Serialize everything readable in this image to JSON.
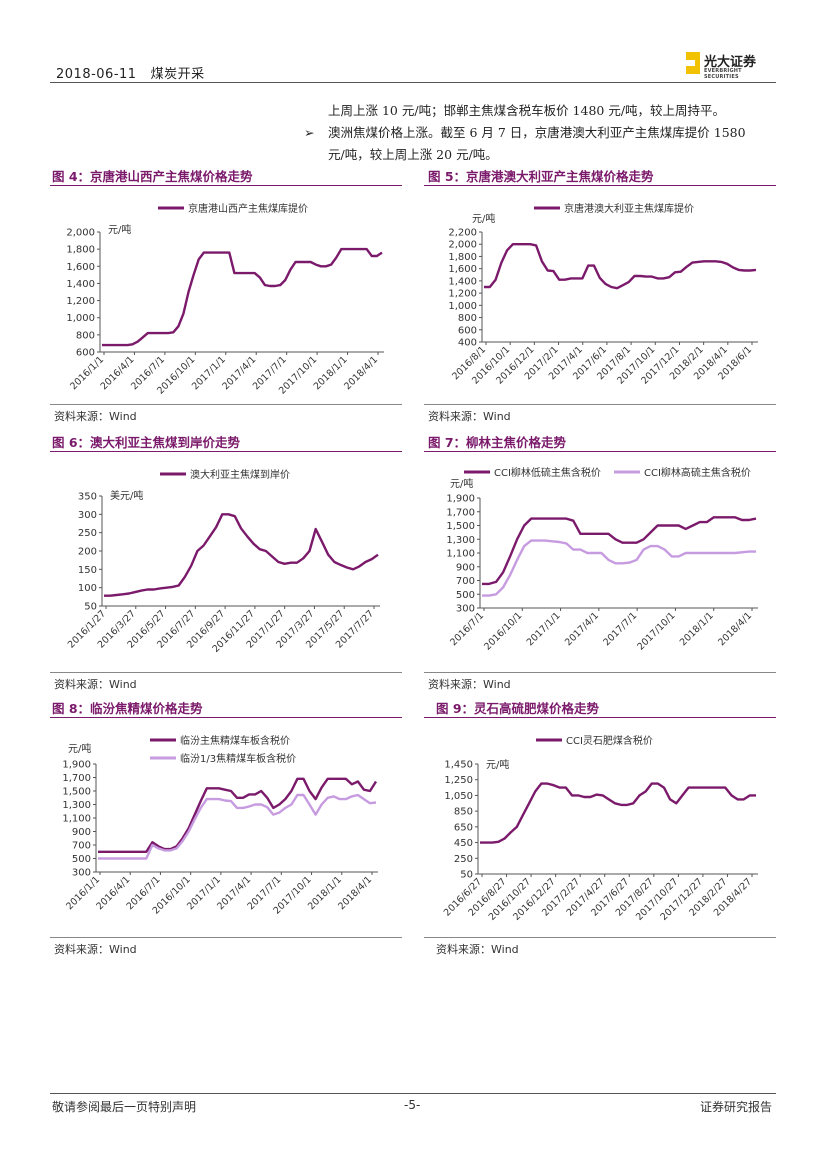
{
  "header": {
    "date": "2018-06-11",
    "section": "煤炭开采",
    "logo_name": "光大证券",
    "logo_sub": "EVERBRIGHT SECURITIES"
  },
  "body": {
    "line1": "上周上涨 10 元/吨；邯郸主焦煤含税车板价 1480 元/吨，较上周持平。",
    "bullet_mark": "➢",
    "line2": "澳洲焦煤价格上涨。截至 6 月 7 日，京唐港澳大利亚产主焦煤库提价 1580",
    "line3": "元/吨，较上周上涨 20 元/吨。"
  },
  "figures": [
    {
      "title": "图 4：京唐港山西产主焦煤价格走势",
      "source": "资料来源：Wind"
    },
    {
      "title": "图 5：京唐港澳大利亚产主焦煤价格走势",
      "source": "资料来源：Wind"
    },
    {
      "title": "图 6：澳大利亚主焦煤到岸价走势",
      "source": "资料来源：Wind"
    },
    {
      "title": "图 7：柳林主焦价格走势",
      "source": "资料来源：Wind"
    },
    {
      "title": "图 8：临汾焦精煤价格走势",
      "source": "资料来源：Wind"
    },
    {
      "title": "图 9：灵石高硫肥煤价格走势",
      "source": "资料来源：Wind"
    }
  ],
  "footer": {
    "left": "敬请参阅最后一页特别声明",
    "center": "-5-",
    "right": "证券研究报告"
  },
  "colors": {
    "dark": "#7b1a6b",
    "light": "#c79be0",
    "accent": "#7b1a6b"
  },
  "chart_data": [
    {
      "type": "line",
      "title": "图 4：京唐港山西产主焦煤价格走势",
      "unit": "元/吨",
      "ylim": [
        600,
        2000
      ],
      "yticks": [
        "2,000",
        "1,800",
        "1,600",
        "1,400",
        "1,200",
        "1,000",
        "800",
        "600"
      ],
      "xticks": [
        "2016/1/1",
        "2016/4/1",
        "2016/7/1",
        "2016/10/1",
        "2017/1/1",
        "2017/4/1",
        "2017/7/1",
        "2017/10/1",
        "2018/1/1",
        "2018/4/1"
      ],
      "series": [
        {
          "name": "京唐港山西产主焦煤库提价",
          "color": "dark",
          "values": [
            680,
            680,
            680,
            680,
            680,
            680,
            690,
            720,
            770,
            820,
            820,
            820,
            820,
            820,
            830,
            900,
            1050,
            1300,
            1500,
            1680,
            1760,
            1760,
            1760,
            1760,
            1760,
            1760,
            1520,
            1520,
            1520,
            1520,
            1520,
            1470,
            1380,
            1370,
            1370,
            1380,
            1440,
            1560,
            1650,
            1650,
            1650,
            1650,
            1620,
            1600,
            1600,
            1620,
            1700,
            1800,
            1800,
            1800,
            1800,
            1800,
            1800,
            1720,
            1720,
            1760
          ]
        }
      ]
    },
    {
      "type": "line",
      "title": "图 5：京唐港澳大利亚产主焦煤价格走势",
      "unit": "元/吨",
      "ylim": [
        400,
        2200
      ],
      "yticks": [
        "2,200",
        "2,000",
        "1,800",
        "1,600",
        "1,400",
        "1,200",
        "1,000",
        "800",
        "600",
        "400"
      ],
      "xticks": [
        "2016/8/1",
        "2016/10/1",
        "2016/12/1",
        "2017/2/1",
        "2017/4/1",
        "2017/6/1",
        "2017/8/1",
        "2017/10/1",
        "2017/12/1",
        "2018/2/1",
        "2018/4/1",
        "2018/6/1"
      ],
      "series": [
        {
          "name": "京唐港澳大利亚主焦煤库提价",
          "color": "dark",
          "values": [
            1300,
            1300,
            1420,
            1700,
            1900,
            2000,
            2000,
            2000,
            2000,
            1980,
            1720,
            1570,
            1560,
            1420,
            1420,
            1440,
            1440,
            1440,
            1650,
            1650,
            1450,
            1350,
            1300,
            1280,
            1330,
            1380,
            1480,
            1480,
            1470,
            1470,
            1440,
            1440,
            1460,
            1540,
            1550,
            1630,
            1700,
            1710,
            1720,
            1720,
            1720,
            1710,
            1680,
            1620,
            1580,
            1570,
            1570,
            1580
          ]
        }
      ]
    },
    {
      "type": "line",
      "title": "图 6：澳大利亚主焦煤到岸价走势",
      "unit": "美元/吨",
      "ylim": [
        50,
        350
      ],
      "yticks": [
        "350",
        "300",
        "250",
        "200",
        "150",
        "100",
        "50"
      ],
      "xticks": [
        "2016/1/27",
        "2016/3/27",
        "2016/5/27",
        "2016/7/27",
        "2016/9/27",
        "2016/11/27",
        "2017/1/27",
        "2017/3/27",
        "2017/5/27",
        "2017/7/27"
      ],
      "series": [
        {
          "name": "澳大利亚主焦煤到岸价",
          "color": "dark",
          "values": [
            78,
            78,
            80,
            82,
            84,
            88,
            92,
            95,
            95,
            98,
            100,
            102,
            106,
            130,
            160,
            200,
            215,
            240,
            265,
            300,
            300,
            295,
            262,
            240,
            220,
            205,
            200,
            185,
            170,
            165,
            168,
            168,
            180,
            200,
            260,
            225,
            190,
            170,
            162,
            155,
            150,
            158,
            170,
            178,
            190
          ]
        }
      ]
    },
    {
      "type": "line",
      "title": "图 7：柳林主焦价格走势",
      "unit": "元/吨",
      "ylim": [
        300,
        1900
      ],
      "yticks": [
        "1,900",
        "1,700",
        "1,500",
        "1,300",
        "1,100",
        "900",
        "700",
        "500",
        "300"
      ],
      "xticks": [
        "2016/7/1",
        "2016/10/1",
        "2017/1/1",
        "2017/4/1",
        "2017/7/1",
        "2017/10/1",
        "2018/1/1",
        "2018/4/1"
      ],
      "series": [
        {
          "name": "CCI柳林低硫主焦含税价",
          "color": "dark",
          "values": [
            650,
            650,
            680,
            820,
            1050,
            1300,
            1500,
            1600,
            1600,
            1600,
            1600,
            1600,
            1600,
            1570,
            1380,
            1380,
            1380,
            1380,
            1380,
            1300,
            1250,
            1250,
            1250,
            1300,
            1400,
            1500,
            1500,
            1500,
            1500,
            1450,
            1500,
            1550,
            1550,
            1620,
            1620,
            1620,
            1620,
            1580,
            1580,
            1600
          ]
        },
        {
          "name": "CCI柳林高硫主焦含税价",
          "color": "light",
          "values": [
            480,
            480,
            500,
            600,
            780,
            1000,
            1200,
            1280,
            1280,
            1280,
            1270,
            1260,
            1240,
            1150,
            1150,
            1100,
            1100,
            1100,
            1000,
            950,
            950,
            960,
            1000,
            1150,
            1200,
            1200,
            1150,
            1050,
            1050,
            1100,
            1100,
            1100,
            1100,
            1100,
            1100,
            1100,
            1100,
            1110,
            1120,
            1120
          ]
        }
      ]
    },
    {
      "type": "line",
      "title": "图 8：临汾焦精煤价格走势",
      "unit": "元/吨",
      "ylim": [
        300,
        1900
      ],
      "yticks": [
        "1,900",
        "1,700",
        "1,500",
        "1,300",
        "1,100",
        "900",
        "700",
        "500",
        "300"
      ],
      "xticks": [
        "2016/1/1",
        "2016/4/1",
        "2016/7/1",
        "2016/10/1",
        "2017/1/1",
        "2017/4/1",
        "2017/7/1",
        "2017/10/1",
        "2018/1/1",
        "2018/4/1"
      ],
      "series": [
        {
          "name": "临汾主焦精煤车板含税价",
          "color": "dark",
          "values": [
            600,
            600,
            600,
            600,
            600,
            600,
            600,
            600,
            600,
            740,
            680,
            640,
            640,
            680,
            800,
            950,
            1150,
            1350,
            1540,
            1540,
            1540,
            1520,
            1500,
            1400,
            1400,
            1450,
            1450,
            1500,
            1400,
            1250,
            1300,
            1380,
            1500,
            1680,
            1680,
            1500,
            1380,
            1550,
            1680,
            1680,
            1680,
            1680,
            1600,
            1640,
            1520,
            1500,
            1640
          ]
        },
        {
          "name": "临汾1/3焦精煤车板含税价",
          "color": "light",
          "values": [
            500,
            500,
            500,
            500,
            500,
            500,
            500,
            500,
            500,
            700,
            650,
            620,
            620,
            650,
            760,
            900,
            1080,
            1250,
            1380,
            1380,
            1380,
            1360,
            1350,
            1250,
            1250,
            1270,
            1300,
            1300,
            1260,
            1150,
            1180,
            1250,
            1300,
            1440,
            1440,
            1300,
            1150,
            1300,
            1400,
            1420,
            1380,
            1380,
            1420,
            1440,
            1380,
            1320,
            1330
          ]
        }
      ]
    },
    {
      "type": "line",
      "title": "图 9：灵石高硫肥煤价格走势",
      "unit": "元/吨",
      "ylim": [
        50,
        1450
      ],
      "yticks": [
        "1,450",
        "1,250",
        "1,050",
        "850",
        "650",
        "450",
        "250",
        "50"
      ],
      "xticks": [
        "2016/6/27",
        "2016/8/27",
        "2016/10/27",
        "2016/12/27",
        "2017/2/27",
        "2017/4/27",
        "2017/6/27",
        "2017/8/27",
        "2017/10/27",
        "2017/12/27",
        "2018/2/27",
        "2018/4/27"
      ],
      "series": [
        {
          "name": "CCI灵石肥煤含税价",
          "color": "dark",
          "values": [
            450,
            450,
            450,
            460,
            500,
            580,
            650,
            800,
            950,
            1100,
            1200,
            1200,
            1180,
            1150,
            1150,
            1050,
            1050,
            1030,
            1030,
            1060,
            1050,
            1000,
            950,
            930,
            930,
            950,
            1050,
            1100,
            1200,
            1200,
            1150,
            1000,
            950,
            1050,
            1150,
            1150,
            1150,
            1150,
            1150,
            1150,
            1150,
            1050,
            1000,
            1000,
            1050,
            1050
          ]
        }
      ]
    }
  ]
}
